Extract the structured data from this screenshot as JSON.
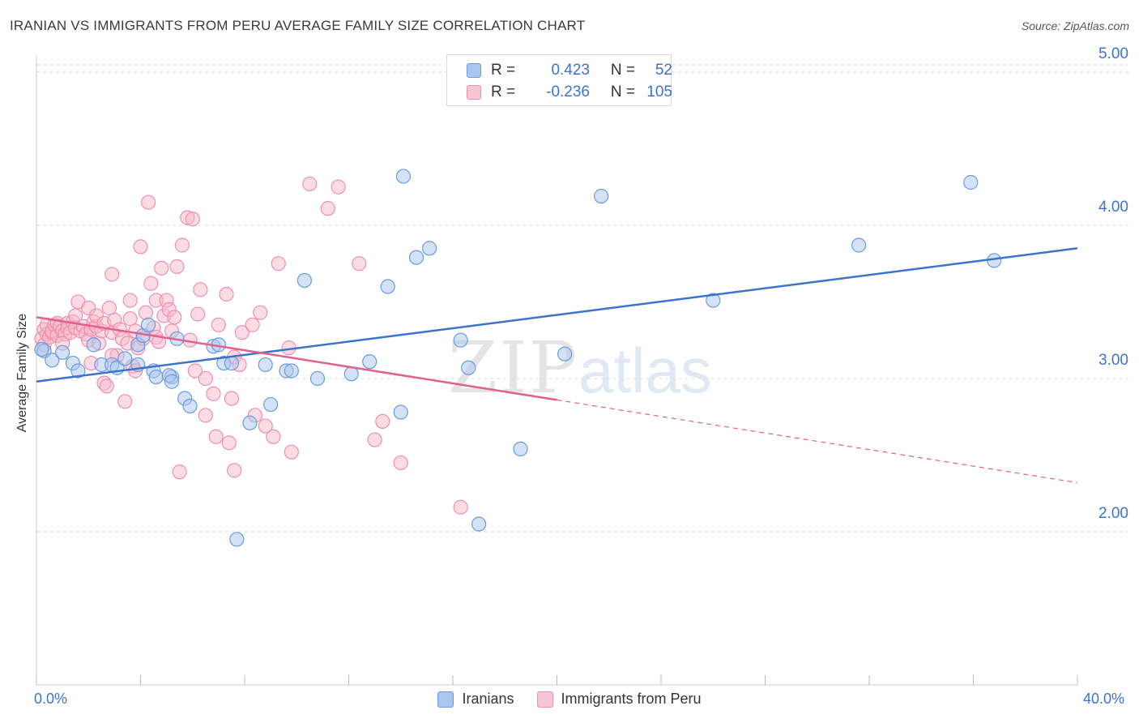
{
  "title": "IRANIAN VS IMMIGRANTS FROM PERU AVERAGE FAMILY SIZE CORRELATION CHART",
  "source": "Source: ZipAtlas.com",
  "watermark": {
    "zip": "ZIP",
    "atlas": "atlas"
  },
  "colors": {
    "blue_fill": "#a9c6ee",
    "blue_stroke": "#6a9be0",
    "blue_line": "#3b73cf",
    "pink_fill": "#f7b9cb",
    "pink_stroke": "#ee8fad",
    "pink_line": "#e0608f",
    "tick_text": "#3b73cf",
    "grid": "#dddddd"
  },
  "legend": {
    "rows": [
      {
        "r_label": "R =",
        "r_value": "0.423",
        "n_label": "N =",
        "n_value": "52",
        "color": "blue"
      },
      {
        "r_label": "R =",
        "r_value": "-0.236",
        "n_label": "N =",
        "n_value": "105",
        "color": "pink"
      }
    ]
  },
  "bottom_legend": [
    "Iranians",
    "Immigrants from Peru"
  ],
  "x_tick_labels": {
    "left": "0.0%",
    "right": "40.0%"
  },
  "chart_data": {
    "type": "scatter",
    "title": "IRANIAN VS IMMIGRANTS FROM PERU AVERAGE FAMILY SIZE CORRELATION CHART",
    "xlabel": "",
    "ylabel": "Average Family Size",
    "xlim": [
      0,
      40
    ],
    "ylim": [
      1.0,
      5.1
    ],
    "y_ticks": [
      2.0,
      3.0,
      4.0,
      5.0
    ],
    "y_tick_labels": [
      "2.00",
      "3.00",
      "4.00",
      "5.00"
    ],
    "grid": "horizontal dashed",
    "legend_position": "top-center",
    "series": [
      {
        "name": "Iranians",
        "color": "blue",
        "trend": {
          "x": [
            0,
            40
          ],
          "y": [
            2.98,
            3.85
          ]
        },
        "points": [
          [
            0.3,
            3.18
          ],
          [
            0.6,
            3.12
          ],
          [
            1.0,
            3.17
          ],
          [
            1.4,
            3.1
          ],
          [
            1.6,
            3.05
          ],
          [
            2.2,
            3.22
          ],
          [
            2.5,
            3.09
          ],
          [
            2.9,
            3.09
          ],
          [
            3.1,
            3.07
          ],
          [
            3.4,
            3.13
          ],
          [
            3.9,
            3.22
          ],
          [
            3.9,
            3.09
          ],
          [
            4.1,
            3.28
          ],
          [
            4.3,
            3.35
          ],
          [
            4.5,
            3.05
          ],
          [
            4.6,
            3.01
          ],
          [
            5.2,
            3.01
          ],
          [
            5.1,
            3.02
          ],
          [
            5.2,
            2.98
          ],
          [
            5.4,
            3.26
          ],
          [
            5.7,
            2.87
          ],
          [
            5.9,
            2.82
          ],
          [
            6.8,
            3.21
          ],
          [
            7.0,
            3.22
          ],
          [
            7.2,
            3.1
          ],
          [
            7.5,
            3.1
          ],
          [
            7.7,
            1.95
          ],
          [
            8.2,
            2.71
          ],
          [
            8.8,
            3.09
          ],
          [
            9.0,
            2.83
          ],
          [
            9.6,
            3.05
          ],
          [
            9.8,
            3.05
          ],
          [
            10.3,
            3.64
          ],
          [
            10.8,
            3.0
          ],
          [
            12.1,
            3.03
          ],
          [
            12.8,
            3.11
          ],
          [
            13.5,
            3.6
          ],
          [
            14.0,
            2.78
          ],
          [
            14.1,
            4.32
          ],
          [
            14.6,
            3.79
          ],
          [
            15.1,
            3.85
          ],
          [
            16.3,
            3.25
          ],
          [
            16.6,
            3.07
          ],
          [
            17.0,
            2.05
          ],
          [
            18.6,
            2.54
          ],
          [
            20.3,
            3.16
          ],
          [
            21.7,
            4.19
          ],
          [
            26.0,
            3.51
          ],
          [
            31.6,
            3.87
          ],
          [
            35.9,
            4.28
          ],
          [
            36.8,
            3.77
          ],
          [
            0.2,
            3.19
          ]
        ]
      },
      {
        "name": "Immigrants from Peru",
        "color": "pink",
        "trend": {
          "x": [
            0,
            20
          ],
          "y": [
            3.4,
            2.86
          ]
        },
        "trend_dashed": {
          "x": [
            20,
            40
          ],
          "y": [
            2.86,
            2.32
          ]
        },
        "points": [
          [
            0.2,
            3.26
          ],
          [
            0.3,
            3.32
          ],
          [
            0.3,
            3.22
          ],
          [
            0.4,
            3.29
          ],
          [
            0.4,
            3.35
          ],
          [
            0.5,
            3.27
          ],
          [
            0.6,
            3.3
          ],
          [
            0.6,
            3.31
          ],
          [
            0.7,
            3.35
          ],
          [
            0.8,
            3.28
          ],
          [
            0.8,
            3.36
          ],
          [
            0.9,
            3.34
          ],
          [
            1.0,
            3.31
          ],
          [
            1.1,
            3.29
          ],
          [
            1.2,
            3.36
          ],
          [
            1.2,
            3.33
          ],
          [
            1.3,
            3.3
          ],
          [
            1.4,
            3.37
          ],
          [
            1.5,
            3.41
          ],
          [
            1.5,
            3.33
          ],
          [
            1.6,
            3.5
          ],
          [
            1.7,
            3.31
          ],
          [
            1.8,
            3.34
          ],
          [
            1.9,
            3.29
          ],
          [
            2.0,
            3.46
          ],
          [
            2.0,
            3.25
          ],
          [
            2.1,
            3.32
          ],
          [
            2.2,
            3.37
          ],
          [
            2.3,
            3.34
          ],
          [
            2.3,
            3.41
          ],
          [
            2.4,
            3.23
          ],
          [
            2.5,
            3.31
          ],
          [
            2.6,
            2.97
          ],
          [
            2.6,
            3.36
          ],
          [
            2.7,
            2.95
          ],
          [
            2.8,
            3.46
          ],
          [
            2.9,
            3.68
          ],
          [
            2.9,
            3.3
          ],
          [
            3.0,
            3.38
          ],
          [
            3.1,
            3.15
          ],
          [
            3.2,
            3.32
          ],
          [
            3.3,
            3.26
          ],
          [
            3.4,
            2.85
          ],
          [
            3.5,
            3.23
          ],
          [
            3.6,
            3.51
          ],
          [
            3.6,
            3.39
          ],
          [
            3.7,
            3.08
          ],
          [
            3.8,
            3.31
          ],
          [
            3.9,
            3.2
          ],
          [
            4.0,
            3.86
          ],
          [
            4.1,
            3.26
          ],
          [
            4.2,
            3.43
          ],
          [
            4.3,
            4.15
          ],
          [
            4.4,
            3.62
          ],
          [
            4.5,
            3.33
          ],
          [
            4.6,
            3.27
          ],
          [
            4.6,
            3.51
          ],
          [
            4.7,
            3.24
          ],
          [
            4.8,
            3.72
          ],
          [
            4.9,
            3.41
          ],
          [
            5.0,
            3.51
          ],
          [
            5.1,
            3.45
          ],
          [
            5.2,
            3.31
          ],
          [
            5.3,
            3.4
          ],
          [
            5.4,
            3.73
          ],
          [
            5.5,
            2.39
          ],
          [
            5.6,
            3.87
          ],
          [
            5.8,
            4.05
          ],
          [
            5.9,
            3.25
          ],
          [
            6.0,
            4.04
          ],
          [
            6.1,
            3.05
          ],
          [
            6.2,
            3.42
          ],
          [
            6.3,
            3.58
          ],
          [
            6.5,
            2.76
          ],
          [
            6.5,
            3.0
          ],
          [
            6.8,
            2.9
          ],
          [
            6.9,
            2.62
          ],
          [
            7.0,
            3.35
          ],
          [
            7.3,
            3.55
          ],
          [
            7.4,
            2.58
          ],
          [
            7.5,
            2.87
          ],
          [
            7.6,
            2.4
          ],
          [
            7.6,
            3.14
          ],
          [
            7.8,
            3.09
          ],
          [
            7.9,
            3.3
          ],
          [
            8.3,
            3.35
          ],
          [
            8.4,
            2.76
          ],
          [
            8.6,
            3.43
          ],
          [
            8.8,
            2.69
          ],
          [
            9.1,
            2.62
          ],
          [
            9.3,
            3.75
          ],
          [
            9.7,
            3.2
          ],
          [
            9.8,
            2.52
          ],
          [
            10.5,
            4.27
          ],
          [
            11.2,
            4.11
          ],
          [
            11.6,
            4.25
          ],
          [
            12.4,
            3.75
          ],
          [
            13.0,
            2.6
          ],
          [
            13.3,
            2.72
          ],
          [
            14.0,
            2.45
          ],
          [
            16.3,
            2.16
          ],
          [
            2.1,
            3.1
          ],
          [
            1.0,
            3.23
          ],
          [
            3.8,
            3.05
          ],
          [
            2.9,
            3.15
          ]
        ]
      }
    ]
  }
}
